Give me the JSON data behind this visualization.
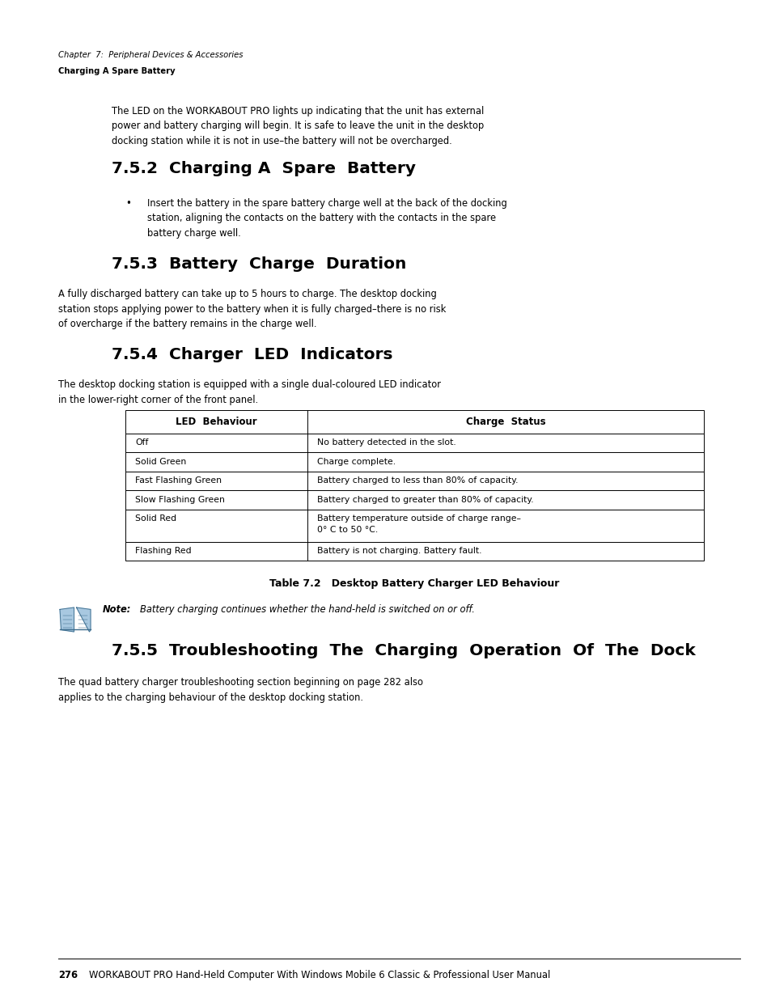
{
  "bg_color": "#ffffff",
  "page_width": 9.54,
  "page_height": 12.35,
  "header_italic": "Chapter  7:  Peripheral Devices & Accessories",
  "header_bold": "Charging A Spare Battery",
  "intro_text": "The LED on the WORKABOUT PRO lights up indicating that the unit has external\npower and battery charging will begin. It is safe to leave the unit in the desktop\ndocking station while it is not in use–the battery will not be overcharged.",
  "section_752_title": "7.5.2  Charging A  Spare  Battery",
  "section_752_bullet": "Insert the battery in the spare battery charge well at the back of the docking\nstation, aligning the contacts on the battery with the contacts in the spare\nbattery charge well.",
  "section_753_title": "7.5.3  Battery  Charge  Duration",
  "section_753_text": "A fully discharged battery can take up to 5 hours to charge. The desktop docking\nstation stops applying power to the battery when it is fully charged–there is no risk\nof overcharge if the battery remains in the charge well.",
  "section_754_title": "7.5.4  Charger  LED  Indicators",
  "section_754_text": "The desktop docking station is equipped with a single dual-coloured LED indicator\nin the lower-right corner of the front panel.",
  "table_header_col1": "LED  Behaviour",
  "table_header_col2": "Charge  Status",
  "table_rows": [
    [
      "Off",
      "No battery detected in the slot."
    ],
    [
      "Solid Green",
      "Charge complete."
    ],
    [
      "Fast Flashing Green",
      "Battery charged to less than 80% of capacity."
    ],
    [
      "Slow Flashing Green",
      "Battery charged to greater than 80% of capacity."
    ],
    [
      "Solid Red",
      "Battery temperature outside of charge range–\n0° C to 50 °C."
    ],
    [
      "Flashing Red",
      "Battery is not charging. Battery fault."
    ]
  ],
  "table_caption": "Table 7.2   Desktop Battery Charger LED Behaviour",
  "note_label": "Note:",
  "note_text": "Battery charging continues whether the hand-held is switched on or off.",
  "section_755_title": "7.5.5  Troubleshooting  The  Charging  Operation  Of  The  Dock",
  "section_755_text": "The quad battery charger troubleshooting section beginning on page 282 also\napplies to the charging behaviour of the desktop docking station.",
  "footer_page": "276",
  "footer_text": "WORKABOUT PRO Hand-Held Computer With Windows Mobile 6 Classic & Professional User Manual"
}
